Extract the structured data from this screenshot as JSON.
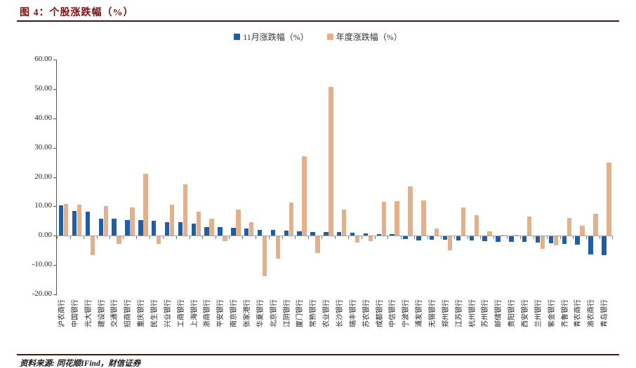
{
  "header": {
    "title": "图 4：个股涨跌幅（%）"
  },
  "footer": {
    "source": "资料来源: 同花顺IFind，财信证券"
  },
  "chart_data": {
    "type": "bar",
    "title": "图 4：个股涨跌幅（%）",
    "ylim": [
      -20,
      60
    ],
    "ytick_labels": [
      "60.00",
      "50.00",
      "40.00",
      "30.00",
      "20.00",
      "10.00",
      "0.00",
      "-10.00",
      "-20.00"
    ],
    "grid": "off",
    "legend_position": "top-center",
    "categories": [
      "沪农商行",
      "中国银行",
      "光大银行",
      "建设银行",
      "交通银行",
      "招商银行",
      "重庆银行",
      "民生银行",
      "兴业银行",
      "工商银行",
      "上海银行",
      "浙商银行",
      "平安银行",
      "南京银行",
      "张家港行",
      "华夏银行",
      "北京银行",
      "江阴银行",
      "厦门银行",
      "常熟银行",
      "农业银行",
      "长沙银行",
      "瑞丰银行",
      "苏农银行",
      "成都银行",
      "中信银行",
      "宁波银行",
      "浦发银行",
      "无锡银行",
      "郑州银行",
      "江苏银行",
      "杭州银行",
      "苏州银行",
      "邮储银行",
      "贵阳银行",
      "西安银行",
      "兰州银行",
      "紫金银行",
      "齐鲁银行",
      "青农商行",
      "渝农商行",
      "青岛银行"
    ],
    "series": [
      {
        "name": "11月涨跌幅（%）",
        "color": "#1f5da5",
        "values": [
          10.4,
          8.3,
          8.2,
          5.9,
          5.8,
          5.2,
          5.4,
          5.0,
          4.5,
          4.6,
          4.2,
          3.0,
          2.9,
          2.6,
          2.5,
          1.9,
          1.9,
          1.8,
          1.6,
          1.2,
          1.2,
          1.2,
          0.9,
          0.7,
          0.6,
          0.5,
          -0.8,
          -1.4,
          -1.2,
          -1.2,
          -1.3,
          -1.4,
          -1.5,
          -1.8,
          -1.8,
          -1.9,
          -2.2,
          -2.3,
          -2.6,
          -2.9,
          -6.1,
          -6.4
        ]
      },
      {
        "name": "年度涨跌幅（%）",
        "color": "#e0b18c",
        "values": [
          10.8,
          10.5,
          -6.4,
          10.2,
          -2.5,
          9.6,
          21.0,
          -2.6,
          10.6,
          17.5,
          8.1,
          5.9,
          -1.5,
          8.9,
          4.5,
          -13.5,
          -7.5,
          11.2,
          27.0,
          -5.6,
          50.8,
          8.9,
          -2.0,
          -1.6,
          11.5,
          11.7,
          16.7,
          11.9,
          2.5,
          -4.7,
          9.5,
          7.1,
          1.5,
          0.3,
          0.2,
          6.4,
          -4.2,
          -3.0,
          6.1,
          3.5,
          7.5,
          25.0
        ]
      }
    ]
  }
}
